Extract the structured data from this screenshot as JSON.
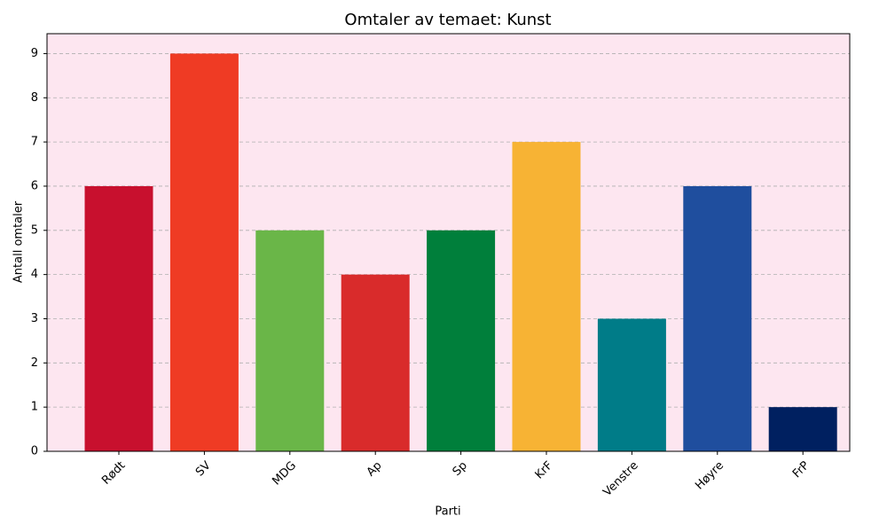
{
  "chart_data": {
    "type": "bar",
    "title": "Omtaler av temaet: Kunst",
    "x_label": "Parti",
    "y_label": "Antall omtaler",
    "categories": [
      "Rødt",
      "SV",
      "MDG",
      "Ap",
      "Sp",
      "KrF",
      "Venstre",
      "Høyre",
      "FrP"
    ],
    "values": [
      6,
      9,
      5,
      4,
      5,
      7,
      3,
      6,
      1
    ],
    "colors": [
      "#c8102e",
      "#ef3b24",
      "#6ab648",
      "#d92b2b",
      "#007f3b",
      "#f7b334",
      "#007c88",
      "#1f4e9e",
      "#002060"
    ],
    "ylim": [
      0,
      9.45
    ],
    "yticks": [
      0,
      1,
      2,
      3,
      4,
      5,
      6,
      7,
      8,
      9
    ],
    "grid": true,
    "background": "#fde6f0"
  }
}
